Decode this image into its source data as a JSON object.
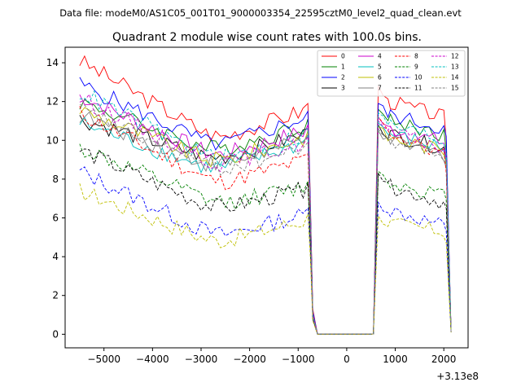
{
  "chart_data": {
    "type": "line",
    "suptitle": "Data file: modeM0/AS1C05_001T01_9000003354_22595cztM0_level2_quad_clean.evt",
    "title": "Quadrant 2 module wise count rates with 100.0s bins.",
    "xlabel": "",
    "ylabel": "",
    "x_offset_label": "+3.13e8",
    "xlim": [
      -5800,
      2500
    ],
    "ylim": [
      -0.7,
      14.8
    ],
    "xticks": [
      -5000,
      -4000,
      -3000,
      -2000,
      -1000,
      0,
      1000,
      2000
    ],
    "xtick_labels": [
      "−5000",
      "−4000",
      "−3000",
      "−2000",
      "−1000",
      "0",
      "1000",
      "2000"
    ],
    "yticks": [
      0,
      2,
      4,
      6,
      8,
      10,
      12,
      14
    ],
    "ytick_labels": [
      "0",
      "2",
      "4",
      "6",
      "8",
      "10",
      "12",
      "14"
    ],
    "grid": false,
    "legend_position": "top-right",
    "segments": [
      {
        "start": -5500,
        "end": -800,
        "step": 100
      },
      {
        "start": -750,
        "end": -600,
        "step": 50
      },
      {
        "start": -500,
        "end": 500,
        "step": 100
      },
      {
        "start": 550,
        "end": 850,
        "step": 100
      },
      {
        "start": 900,
        "end": 2000,
        "step": 100
      },
      {
        "start": 2050,
        "end": 2150,
        "step": 50
      }
    ],
    "series": [
      {
        "name": "0",
        "color": "#ff0000",
        "dash": "solid",
        "base": 11.0,
        "start": 14.1,
        "valley": 9.9,
        "drop": [
          7.0,
          1.3,
          0.0
        ],
        "gap": 0.0,
        "rise": [
          0.0,
          12.8,
          12.4,
          12.0
        ],
        "right": 11.2,
        "end": [
          10.0,
          0.1
        ]
      },
      {
        "name": "1",
        "color": "#008000",
        "dash": "solid",
        "base": 10.2,
        "start": 12.0,
        "valley": 9.3,
        "drop": [
          6.5,
          1.0,
          0.0
        ],
        "gap": 0.0,
        "rise": [
          0.0,
          11.6,
          11.3,
          11.0
        ],
        "right": 10.3,
        "end": [
          9.4,
          0.1
        ]
      },
      {
        "name": "2",
        "color": "#0000ff",
        "dash": "solid",
        "base": 10.6,
        "start": 12.9,
        "valley": 9.5,
        "drop": [
          6.8,
          1.2,
          0.0
        ],
        "gap": 0.0,
        "rise": [
          0.0,
          11.9,
          11.6,
          11.3
        ],
        "right": 10.6,
        "end": [
          10.2,
          0.1
        ]
      },
      {
        "name": "3",
        "color": "#000000",
        "dash": "solid",
        "base": 9.7,
        "start": 11.1,
        "valley": 8.9,
        "drop": [
          6.2,
          1.0,
          0.0
        ],
        "gap": 0.0,
        "rise": [
          0.0,
          10.8,
          10.5,
          10.3
        ],
        "right": 9.6,
        "end": [
          8.7,
          0.1
        ]
      },
      {
        "name": "4",
        "color": "#cc00cc",
        "dash": "solid",
        "base": 9.9,
        "start": 12.3,
        "valley": 9.0,
        "drop": [
          6.4,
          1.0,
          0.0
        ],
        "gap": 0.0,
        "rise": [
          0.0,
          11.2,
          10.9,
          10.6
        ],
        "right": 9.9,
        "end": [
          9.1,
          0.1
        ]
      },
      {
        "name": "5",
        "color": "#00bfbf",
        "dash": "solid",
        "base": 9.3,
        "start": 10.9,
        "valley": 8.3,
        "drop": [
          6.0,
          0.9,
          0.0
        ],
        "gap": 0.0,
        "rise": [
          0.0,
          10.9,
          10.6,
          10.3
        ],
        "right": 9.6,
        "end": [
          8.9,
          0.1
        ]
      },
      {
        "name": "6",
        "color": "#bfbf00",
        "dash": "solid",
        "base": 9.6,
        "start": 11.6,
        "valley": 8.7,
        "drop": [
          6.2,
          1.0,
          0.0
        ],
        "gap": 0.0,
        "rise": [
          0.0,
          10.7,
          10.4,
          10.1
        ],
        "right": 9.5,
        "end": [
          8.8,
          0.1
        ]
      },
      {
        "name": "7",
        "color": "#808080",
        "dash": "solid",
        "base": 9.4,
        "start": 11.3,
        "valley": 8.5,
        "drop": [
          6.1,
          1.0,
          0.0
        ],
        "gap": 0.0,
        "rise": [
          0.0,
          10.5,
          10.2,
          9.9
        ],
        "right": 9.3,
        "end": [
          8.6,
          0.1
        ]
      },
      {
        "name": "8",
        "color": "#ff0000",
        "dash": "dashed",
        "base": 8.4,
        "start": 11.4,
        "valley": 7.6,
        "drop": [
          5.6,
          0.9,
          0.0
        ],
        "gap": 0.0,
        "rise": [
          0.0,
          11.2,
          10.9,
          10.4
        ],
        "right": 9.2,
        "end": [
          8.3,
          0.1
        ]
      },
      {
        "name": "9",
        "color": "#008000",
        "dash": "dashed",
        "base": 7.0,
        "start": 9.6,
        "valley": 6.6,
        "drop": [
          5.0,
          0.8,
          0.0
        ],
        "gap": 0.0,
        "rise": [
          0.0,
          8.4,
          8.1,
          7.8
        ],
        "right": 7.2,
        "end": [
          6.9,
          0.1
        ]
      },
      {
        "name": "10",
        "color": "#0000ff",
        "dash": "dashed",
        "base": 5.6,
        "start": 8.4,
        "valley": 4.9,
        "drop": [
          4.3,
          0.8,
          0.0
        ],
        "gap": 0.0,
        "rise": [
          0.0,
          6.8,
          6.6,
          6.4
        ],
        "right": 5.6,
        "end": [
          5.3,
          0.1
        ]
      },
      {
        "name": "11",
        "color": "#000000",
        "dash": "dashed",
        "base": 6.9,
        "start": 9.5,
        "valley": 6.3,
        "drop": [
          4.8,
          0.8,
          0.0
        ],
        "gap": 0.0,
        "rise": [
          0.0,
          8.3,
          8.0,
          7.6
        ],
        "right": 6.8,
        "end": [
          6.5,
          0.1
        ]
      },
      {
        "name": "12",
        "color": "#cc00cc",
        "dash": "dashed",
        "base": 9.3,
        "start": 12.2,
        "valley": 8.6,
        "drop": [
          6.0,
          1.0,
          0.0
        ],
        "gap": 0.0,
        "rise": [
          0.0,
          11.0,
          10.7,
          10.4
        ],
        "right": 9.6,
        "end": [
          9.1,
          0.1
        ]
      },
      {
        "name": "13",
        "color": "#00bfbf",
        "dash": "dashed",
        "base": 9.7,
        "start": 12.5,
        "valley": 8.8,
        "drop": [
          6.3,
          1.0,
          0.0
        ],
        "gap": 0.0,
        "rise": [
          0.0,
          11.4,
          11.1,
          10.8
        ],
        "right": 10.0,
        "end": [
          9.4,
          0.1
        ]
      },
      {
        "name": "14",
        "color": "#bfbf00",
        "dash": "dashed",
        "base": 5.3,
        "start": 7.4,
        "valley": 4.6,
        "drop": [
          4.0,
          0.7,
          0.0
        ],
        "gap": 0.0,
        "rise": [
          0.0,
          6.1,
          5.9,
          5.7
        ],
        "right": 5.3,
        "end": [
          4.7,
          0.1
        ]
      },
      {
        "name": "15",
        "color": "#808080",
        "dash": "dashed",
        "base": 9.0,
        "start": 11.6,
        "valley": 8.3,
        "drop": [
          5.9,
          0.9,
          0.0
        ],
        "gap": 0.0,
        "rise": [
          0.0,
          10.6,
          10.3,
          10.0
        ],
        "right": 9.3,
        "end": [
          8.9,
          0.1
        ]
      }
    ]
  }
}
